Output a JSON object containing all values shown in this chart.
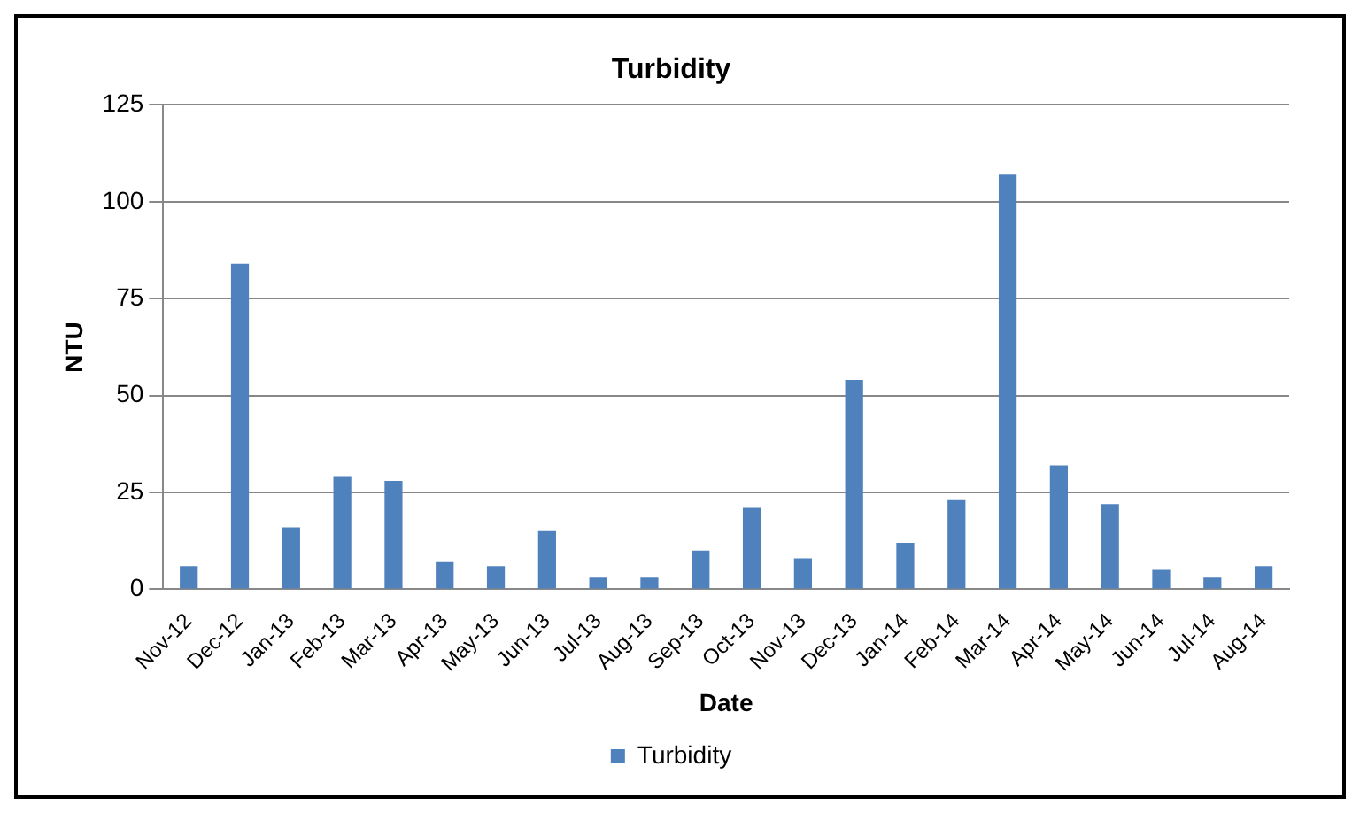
{
  "chart_data": {
    "type": "bar",
    "title": "Turbidity",
    "xlabel": "Date",
    "ylabel": "NTU",
    "categories": [
      "Nov-12",
      "Dec-12",
      "Jan-13",
      "Feb-13",
      "Mar-13",
      "Apr-13",
      "May-13",
      "Jun-13",
      "Jul-13",
      "Aug-13",
      "Sep-13",
      "Oct-13",
      "Nov-13",
      "Dec-13",
      "Jan-14",
      "Feb-14",
      "Mar-14",
      "Apr-14",
      "May-14",
      "Jun-14",
      "Jul-14",
      "Aug-14"
    ],
    "series": [
      {
        "name": "Turbidity",
        "color": "#4f81bd",
        "values": [
          6,
          84,
          16,
          29,
          28,
          7,
          6,
          15,
          3,
          3,
          10,
          21,
          8,
          54,
          12,
          23,
          107,
          32,
          22,
          5,
          3,
          6
        ]
      }
    ],
    "ylim": [
      0,
      125
    ],
    "yticks": [
      0,
      25,
      50,
      75,
      100,
      125
    ],
    "grid": "y",
    "legend": "bottom"
  }
}
